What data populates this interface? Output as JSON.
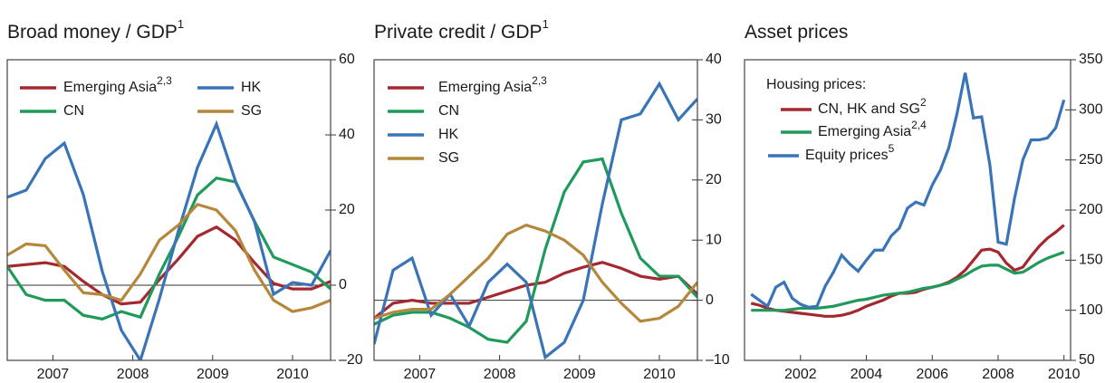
{
  "chart_data": [
    {
      "type": "line",
      "title": "Broad money / GDP",
      "title_footnote": "1",
      "x": [
        2007,
        2007.25,
        2007.5,
        2007.75,
        2008,
        2008.25,
        2008.5,
        2008.75,
        2009,
        2009.25,
        2009.5,
        2009.75,
        2010,
        2010.25,
        2010.5,
        2010.75,
        2011,
        2011.25
      ],
      "series": [
        {
          "name": "Emerging Asia",
          "footnote": "2,3",
          "color": "#a3282f",
          "values": [
            5,
            5.5,
            6,
            5,
            1,
            -2.5,
            -5,
            -4.5,
            1.5,
            7,
            13,
            15.5,
            12,
            6,
            0.5,
            -1,
            -1,
            1
          ]
        },
        {
          "name": "CN",
          "color": "#1f9a5a",
          "values": [
            5,
            -2.5,
            -4,
            -4,
            -8,
            -9,
            -7,
            -8.5,
            3,
            13,
            24,
            28.5,
            27.5,
            17,
            7.5,
            5.5,
            3.5,
            -1
          ]
        },
        {
          "name": "HK",
          "color": "#3a74b8",
          "values": [
            23.4,
            25.3,
            33.7,
            37.8,
            24.1,
            3.6,
            -12,
            -20,
            -3.6,
            14.5,
            31.3,
            42.9,
            27.7,
            16.9,
            -2.4,
            0.7,
            0,
            9.2
          ]
        },
        {
          "name": "SG",
          "color": "#b5873a",
          "values": [
            8,
            11,
            10.5,
            4,
            -2,
            -2.5,
            -4,
            3,
            12,
            16,
            21.5,
            20,
            14.5,
            4,
            -4,
            -7,
            -6,
            -4
          ]
        }
      ],
      "xlim": [
        2007,
        2011.25
      ],
      "xticks": [
        {
          "value": 2007.6,
          "label": "2007"
        },
        {
          "value": 2008.65,
          "label": "2008"
        },
        {
          "value": 2009.7,
          "label": "2009"
        },
        {
          "value": 2010.75,
          "label": "2010"
        }
      ],
      "ylim": [
        -20,
        60
      ],
      "yticks": [
        {
          "value": -20,
          "label": "–20"
        },
        0,
        20,
        40,
        60
      ],
      "zero_line": true,
      "legend_columns": 2
    },
    {
      "type": "line",
      "title": "Private credit / GDP",
      "title_footnote": "1",
      "x": [
        2007,
        2007.25,
        2007.5,
        2007.75,
        2008,
        2008.25,
        2008.5,
        2008.75,
        2009,
        2009.25,
        2009.5,
        2009.75,
        2010,
        2010.25,
        2010.5,
        2010.75,
        2011,
        2011.25
      ],
      "series": [
        {
          "name": "Emerging Asia",
          "footnote": "2,3",
          "color": "#a3282f",
          "values": [
            -3,
            -0.5,
            0,
            -0.5,
            -0.5,
            -0.5,
            0.5,
            1.5,
            2.5,
            3,
            4.5,
            5.5,
            6.3,
            5.3,
            4,
            3.5,
            4,
            1
          ]
        },
        {
          "name": "CN",
          "color": "#1f9a5a",
          "values": [
            -4,
            -2.5,
            -2,
            -2,
            -3,
            -4.5,
            -6.5,
            -7,
            -3.5,
            8.5,
            18,
            23,
            23.5,
            14.5,
            7,
            4,
            4,
            0.5
          ]
        },
        {
          "name": "HK",
          "color": "#3a74b8",
          "values": [
            -7.3,
            5,
            7,
            -2.5,
            1,
            -4.3,
            3,
            6,
            3,
            -9.5,
            -7,
            0,
            16,
            30,
            31,
            36,
            30,
            33.5
          ]
        },
        {
          "name": "SG",
          "color": "#b5873a",
          "values": [
            -3,
            -2,
            -1.5,
            -1.5,
            1,
            4,
            7,
            11,
            12.5,
            11.5,
            10,
            7.5,
            3,
            -0.5,
            -3.5,
            -3,
            -1,
            3
          ]
        }
      ],
      "xlim": [
        2007,
        2011.25
      ],
      "xticks": [
        {
          "value": 2007.6,
          "label": "2007"
        },
        {
          "value": 2008.65,
          "label": "2008"
        },
        {
          "value": 2009.7,
          "label": "2009"
        },
        {
          "value": 2010.75,
          "label": "2010"
        }
      ],
      "ylim": [
        -10,
        40
      ],
      "yticks": [
        {
          "value": -10,
          "label": "–10"
        },
        0,
        10,
        20,
        30,
        40
      ],
      "zero_line": true,
      "legend_columns": 1
    },
    {
      "type": "line",
      "title": "Asset prices",
      "legend_title": "Housing prices:",
      "x": [
        2000.5,
        2000.75,
        2001,
        2001.25,
        2001.5,
        2001.75,
        2002,
        2002.25,
        2002.5,
        2002.75,
        2003,
        2003.25,
        2003.5,
        2003.75,
        2004,
        2004.25,
        2004.5,
        2004.75,
        2005,
        2005.25,
        2005.5,
        2005.75,
        2006,
        2006.25,
        2006.5,
        2006.75,
        2007,
        2007.25,
        2007.5,
        2007.75,
        2008,
        2008.25,
        2008.5,
        2008.75,
        2009,
        2009.25,
        2009.5,
        2009.75,
        2010
      ],
      "series": [
        {
          "name": "CN, HK and SG",
          "footnote": "2",
          "color": "#a3282f",
          "values": [
            107,
            105,
            102,
            100,
            99,
            98,
            97,
            96,
            95,
            94,
            94,
            95,
            97,
            100,
            104,
            107,
            110,
            114,
            117,
            117,
            118,
            121,
            123,
            125,
            128,
            133,
            140,
            150,
            160,
            161,
            158,
            147,
            140,
            143,
            154,
            164,
            172,
            178,
            185
          ]
        },
        {
          "name": "Emerging Asia",
          "footnote": "2,4",
          "color": "#1f9a5a",
          "values": [
            100,
            100,
            100,
            100,
            100,
            101,
            102,
            102,
            102,
            103,
            104,
            106,
            108,
            110,
            111,
            113,
            115,
            116,
            117,
            118,
            120,
            122,
            123,
            125,
            127,
            131,
            135,
            140,
            144,
            145,
            145,
            141,
            137,
            138,
            143,
            148,
            152,
            155,
            158
          ]
        },
        {
          "name": "Equity prices",
          "footnote": "5",
          "color": "#3a74b8",
          "values": [
            116,
            110,
            104,
            123,
            128,
            112,
            106,
            103,
            104,
            124,
            138,
            155,
            146,
            139,
            150,
            160,
            160,
            174,
            182,
            202,
            208,
            205,
            225,
            240,
            262,
            296,
            337,
            292,
            293,
            245,
            168,
            166,
            212,
            250,
            270,
            270,
            272,
            282,
            310
          ]
        }
      ],
      "xlim": [
        2000.3,
        2010.2
      ],
      "xticks": [
        2002,
        2004,
        2006,
        2008,
        2010
      ],
      "ylim": [
        50,
        350
      ],
      "yticks": [
        50,
        100,
        150,
        200,
        250,
        300,
        350
      ],
      "zero_line": false,
      "legend_columns": 1
    }
  ]
}
